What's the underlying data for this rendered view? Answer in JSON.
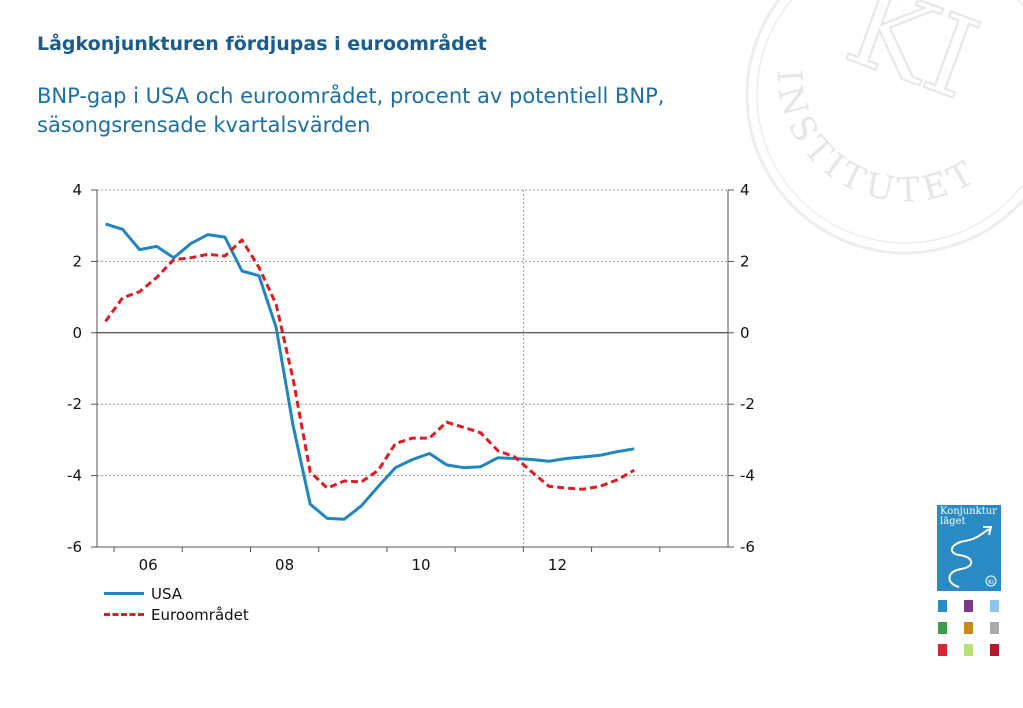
{
  "slide": {
    "title": "Lågkonjunkturen fördjupas i euroområdet",
    "subtitle": "BNP-gap i USA och euroområdet, procent av potentiell BNP, säsongsrensade kvartalsvärden"
  },
  "seal_text": "INSTITUTET",
  "seal_monogram": "KI",
  "cover": {
    "title_line1": "Konjunktur",
    "title_line2": "läget",
    "badge": "KI"
  },
  "colors": {
    "usa": "#1f86bf",
    "euro": "#e11b22",
    "title": "#1b5c8f",
    "subtitle": "#1b6fa6"
  },
  "chart_data": {
    "type": "line",
    "title": "",
    "xlabel": "",
    "ylabel": "",
    "ylim": [
      -6,
      4
    ],
    "yticks": [
      "4",
      "2",
      "0",
      "-2",
      "-4",
      "-6"
    ],
    "yticks_right": [
      "4",
      "2",
      "0",
      "-2",
      "-4",
      "-6"
    ],
    "ytick_values": [
      4,
      2,
      0,
      -2,
      -4,
      -6
    ],
    "xticks": [
      "06",
      "08",
      "10",
      "12"
    ],
    "x_quarters": [
      "2005Q4",
      "2006Q1",
      "2006Q2",
      "2006Q3",
      "2006Q4",
      "2007Q1",
      "2007Q2",
      "2007Q3",
      "2007Q4",
      "2008Q1",
      "2008Q2",
      "2008Q3",
      "2008Q4",
      "2009Q1",
      "2009Q2",
      "2009Q3",
      "2009Q4",
      "2010Q1",
      "2010Q2",
      "2010Q3",
      "2010Q4",
      "2011Q1",
      "2011Q2",
      "2011Q3",
      "2011Q4",
      "2012Q1",
      "2012Q2",
      "2012Q3",
      "2012Q4",
      "2013Q1",
      "2013Q2",
      "2013Q3",
      "2013Q4",
      "2014Q1",
      "2014Q2",
      "2014Q3",
      "2014Q4"
    ],
    "grid": true,
    "legend_position": "bottom-left",
    "series": [
      {
        "name": "USA",
        "style": "solid",
        "values": [
          3.05,
          2.9,
          2.33,
          2.42,
          2.1,
          2.5,
          2.75,
          2.68,
          1.73,
          1.6,
          0.15,
          -2.6,
          -4.8,
          -5.2,
          -5.22,
          -4.85,
          -4.3,
          -3.78,
          -3.55,
          -3.38,
          -3.7,
          -3.78,
          -3.75,
          -3.5,
          -3.52,
          -3.55,
          -3.6,
          -3.52,
          -3.48,
          -3.43,
          -3.33,
          -3.25
        ]
      },
      {
        "name": "Euroområdet",
        "style": "dashed",
        "values": [
          0.32,
          0.98,
          1.15,
          1.55,
          2.05,
          2.1,
          2.2,
          2.15,
          2.6,
          1.83,
          0.8,
          -1.3,
          -3.9,
          -4.35,
          -4.15,
          -4.18,
          -3.85,
          -3.1,
          -2.95,
          -2.95,
          -2.5,
          -2.65,
          -2.8,
          -3.3,
          -3.48,
          -3.9,
          -4.3,
          -4.35,
          -4.38,
          -4.3,
          -4.12,
          -3.85
        ]
      }
    ]
  }
}
